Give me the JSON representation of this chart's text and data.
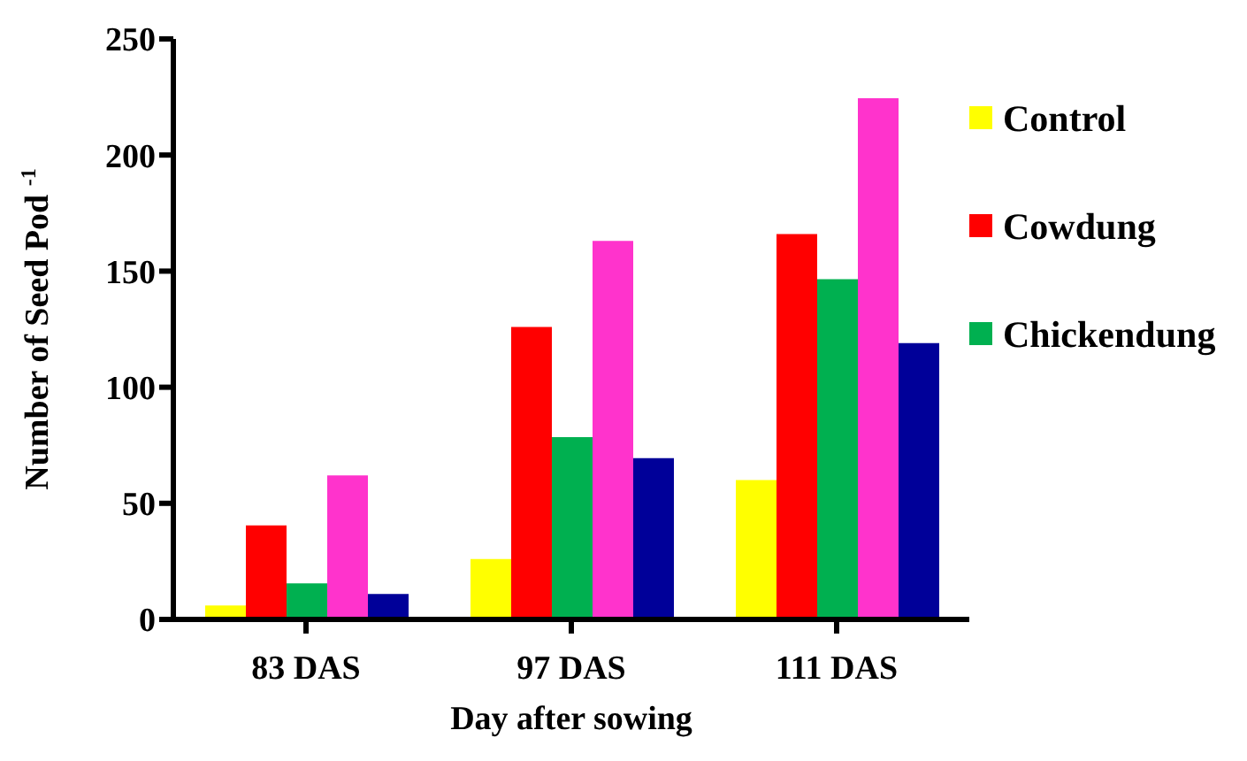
{
  "chart_data": {
    "type": "bar",
    "xlabel": "Day after sowing",
    "ylabel": "Number of Seed Pod $^{-1}$",
    "categories": [
      "83 DAS",
      "97 DAS",
      "111 DAS"
    ],
    "series": [
      {
        "name": "Control",
        "color": "#ffff00",
        "values": [
          6,
          26,
          60
        ]
      },
      {
        "name": "Cowdung",
        "color": "#ff0000",
        "values": [
          40.5,
          126,
          166
        ]
      },
      {
        "name": "Chickendung",
        "color": "#00b050",
        "values": [
          15.5,
          78.5,
          146.5
        ]
      },
      {
        "color": "#ff33cc",
        "values": [
          62,
          163,
          224.5
        ]
      },
      {
        "color": "#000099",
        "values": [
          11,
          69.5,
          119
        ]
      }
    ],
    "ylim": [
      0,
      250
    ],
    "yticks": [
      0,
      50,
      100,
      150,
      200,
      250
    ],
    "grid": false,
    "legend": "top right"
  }
}
